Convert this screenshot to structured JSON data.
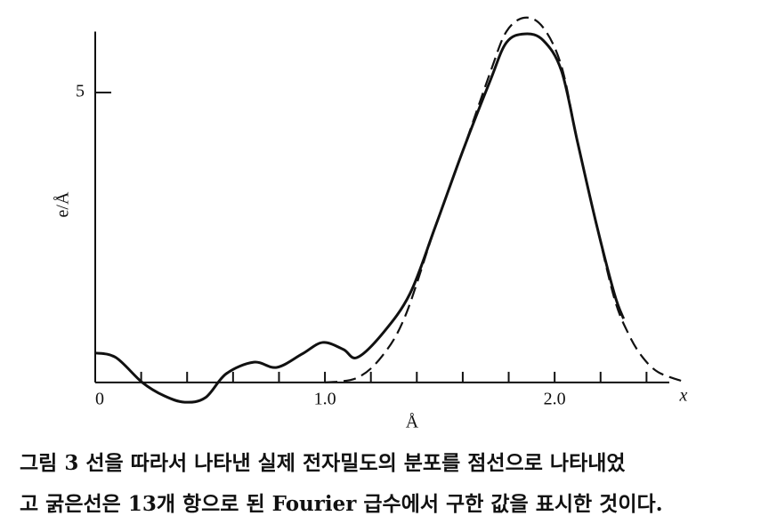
{
  "chart_data": {
    "type": "line",
    "ylabel": "e/Å",
    "xlabel": "Å",
    "axis_end_label": "x",
    "xlim": [
      0,
      2.6
    ],
    "ylim": [
      -0.4,
      6.05
    ],
    "xticks": [
      {
        "value": 0,
        "label": "0"
      },
      {
        "value": 1,
        "label": "1.0"
      },
      {
        "value": 2,
        "label": "2.0"
      }
    ],
    "xminor_ticks": [
      0.2,
      0.4,
      0.6,
      0.8,
      1.2,
      1.4,
      1.6,
      1.8,
      2.2,
      2.4
    ],
    "yticks": [
      5
    ],
    "series": [
      {
        "color": "#111111",
        "dash": false,
        "x": [
          0,
          0.09,
          0.205,
          0.3,
          0.39,
          0.48,
          0.57,
          0.69,
          0.79,
          0.9,
          0.99,
          1.08,
          1.14,
          1.25,
          1.37,
          1.48,
          1.6,
          1.72,
          1.79,
          1.87,
          1.95,
          2.03,
          2.1,
          2.18,
          2.26,
          2.3
        ],
        "values": [
          0.51,
          0.43,
          0,
          -0.23,
          -0.34,
          -0.26,
          0.15,
          0.35,
          0.26,
          0.49,
          0.69,
          0.57,
          0.43,
          0.84,
          1.53,
          2.68,
          3.99,
          5.21,
          5.86,
          6.01,
          5.9,
          5.37,
          4.14,
          2.76,
          1.53,
          1.1
        ]
      },
      {
        "color": "#111111",
        "dash": true,
        "x": [
          1.0,
          1.14,
          1.25,
          1.35,
          1.48,
          1.6,
          1.72,
          1.79,
          1.87,
          1.95,
          2.03,
          2.1,
          2.18,
          2.26,
          2.32,
          2.38,
          2.45,
          2.55
        ],
        "values": [
          0,
          0.08,
          0.46,
          1.15,
          2.68,
          3.99,
          5.35,
          6.05,
          6.29,
          6.12,
          5.45,
          4.14,
          2.76,
          1.45,
          0.85,
          0.45,
          0.18,
          0.03
        ]
      }
    ],
    "caption": [
      "그림 3  선을 따라서 나타낸 실제 전자밀도의 분포를 점선으로 나타내었",
      "고 굵은선은 13개 항으로 된 Fourier 급수에서 구한 값을 표시한 것이다."
    ]
  }
}
